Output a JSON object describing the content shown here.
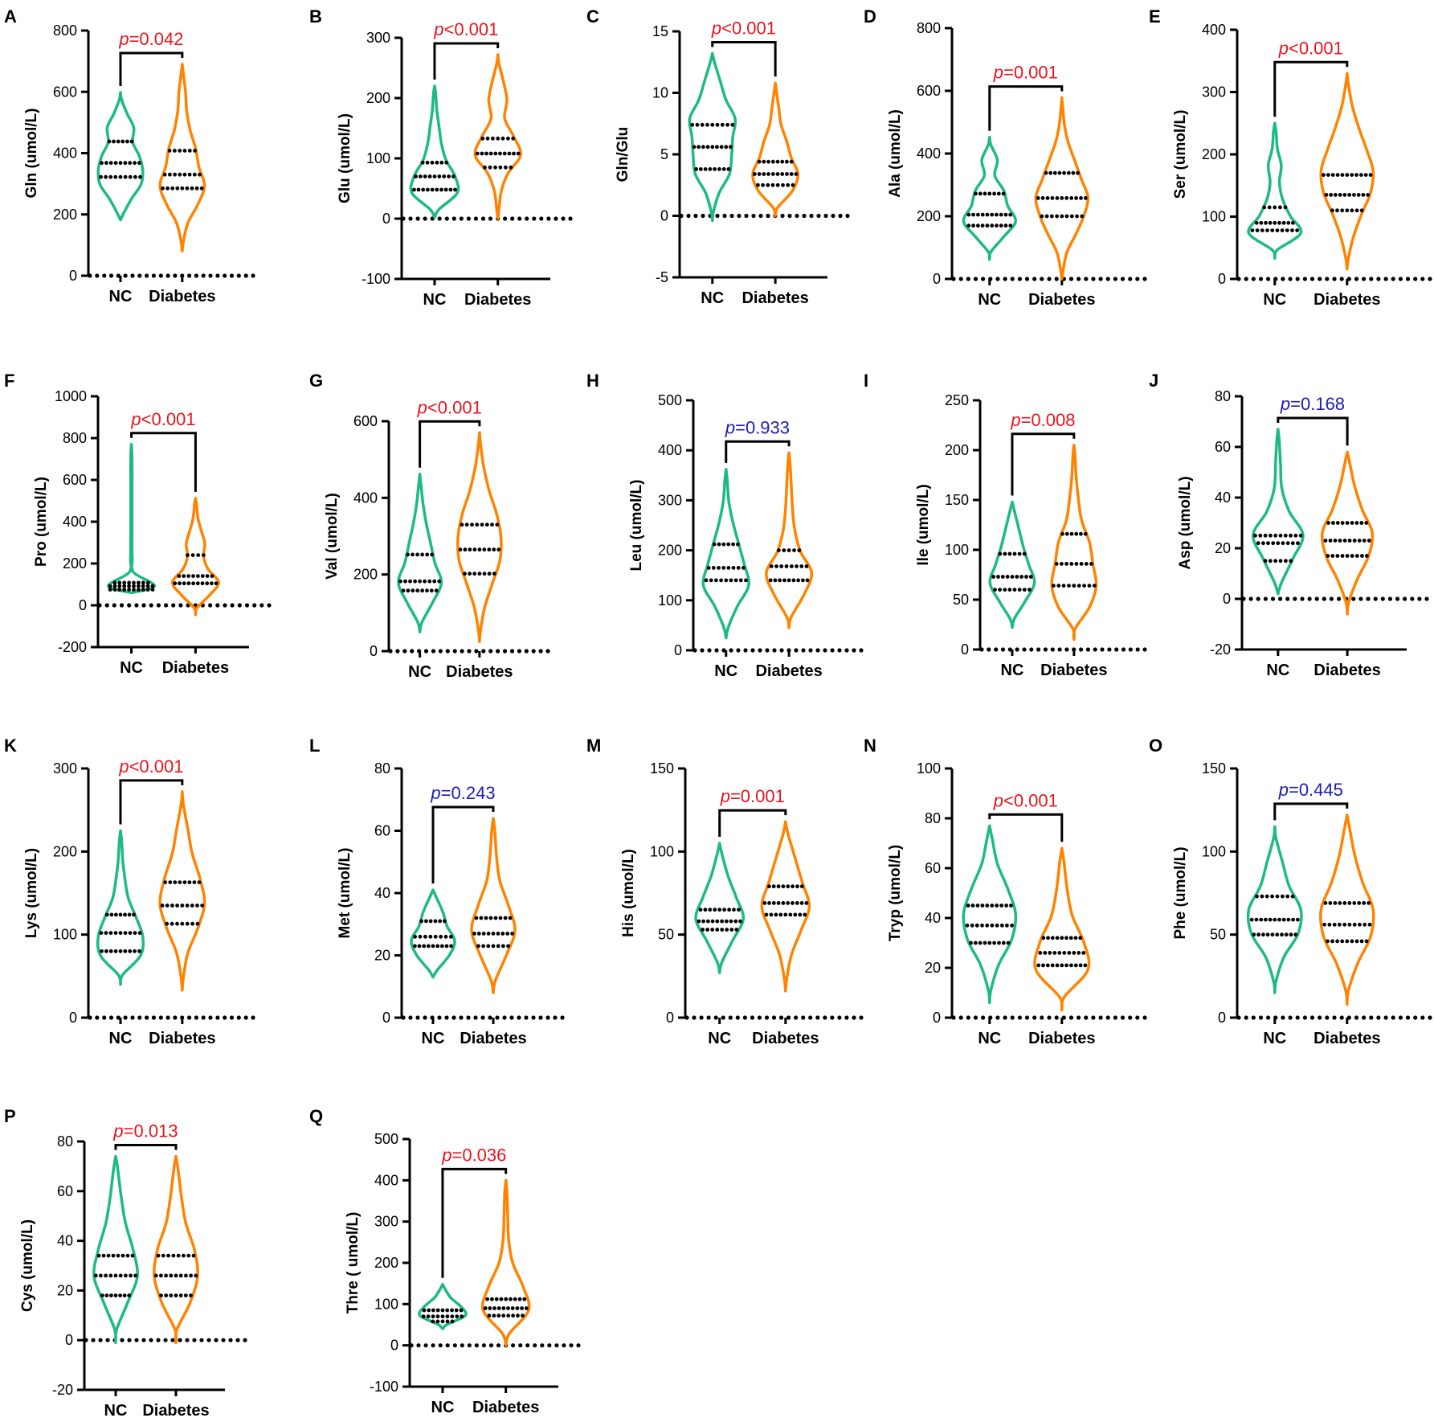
{
  "colors": {
    "nc": "#1dbb80",
    "diabetes": "#ff8300",
    "sig": "#e8141e",
    "nonsig": "#1c1cb4",
    "ink": "#000000"
  },
  "groups": [
    "NC",
    "Diabetes"
  ],
  "p_prefix": "p",
  "chart_data": [
    {
      "panel": "A",
      "type": "violin",
      "ylabel": "Gln (umol/L)",
      "ylim": [
        0,
        800
      ],
      "yticks": [
        0,
        200,
        400,
        600,
        800
      ],
      "ytick_labels": [
        "0",
        "200",
        "400",
        "600",
        "800"
      ],
      "p_text": "=0.042",
      "significant": true,
      "series": [
        {
          "name": "NC",
          "min": 182,
          "max": 598,
          "q1": 322,
          "median": 368,
          "q3": 438,
          "shape": [
            0.15,
            0.5,
            0.92,
            1.0,
            0.85,
            0.55,
            0.6,
            0.3,
            0.05
          ]
        },
        {
          "name": "Diabetes",
          "min": 80,
          "max": 690,
          "q1": 285,
          "median": 330,
          "q3": 408,
          "shape": [
            0.05,
            0.25,
            0.7,
            1.0,
            0.75,
            0.6,
            0.35,
            0.2,
            0.15,
            0.05
          ]
        }
      ]
    },
    {
      "panel": "B",
      "type": "violin",
      "ylabel": "Glu (umol/L)",
      "ylim": [
        -100,
        300
      ],
      "yticks": [
        -100,
        0,
        100,
        200,
        300
      ],
      "ytick_labels": [
        "-100",
        "0",
        "100",
        "200",
        "300"
      ],
      "p_text": "<0.001",
      "significant": true,
      "series": [
        {
          "name": "NC",
          "min": 2,
          "max": 220,
          "q1": 48,
          "median": 70,
          "q3": 93,
          "shape": [
            0.2,
            1.0,
            0.9,
            0.5,
            0.3,
            0.2,
            0.1,
            0.05
          ]
        },
        {
          "name": "Diabetes",
          "min": 0,
          "max": 272,
          "q1": 85,
          "median": 108,
          "q3": 133,
          "shape": [
            0.05,
            0.15,
            0.45,
            1.0,
            0.7,
            0.3,
            0.4,
            0.25,
            0.05
          ]
        }
      ]
    },
    {
      "panel": "C",
      "type": "violin",
      "ylabel": "Gln/Glu",
      "ylim": [
        -5,
        15
      ],
      "yticks": [
        -5,
        0,
        5,
        10,
        15
      ],
      "ytick_labels": [
        "-5",
        "0",
        "5",
        "10",
        "15"
      ],
      "p_text": "<0.001",
      "significant": true,
      "series": [
        {
          "name": "NC",
          "min": -0.4,
          "max": 13.2,
          "q1": 3.8,
          "median": 5.6,
          "q3": 7.4,
          "shape": [
            0.05,
            0.3,
            0.75,
            0.85,
            0.9,
            1.0,
            0.6,
            0.35,
            0.1
          ]
        },
        {
          "name": "Diabetes",
          "min": 0,
          "max": 10.8,
          "q1": 2.5,
          "median": 3.4,
          "q3": 4.4,
          "shape": [
            0.1,
            0.75,
            1.0,
            0.7,
            0.5,
            0.25,
            0.15,
            0.05
          ]
        }
      ]
    },
    {
      "panel": "D",
      "type": "violin",
      "ylabel": "Ala (umol/L)",
      "ylim": [
        0,
        800
      ],
      "yticks": [
        0,
        200,
        400,
        600,
        800
      ],
      "ytick_labels": [
        "0",
        "200",
        "400",
        "600",
        "800"
      ],
      "p_text": "=0.001",
      "significant": true,
      "series": [
        {
          "name": "NC",
          "min": 62,
          "max": 452,
          "q1": 170,
          "median": 205,
          "q3": 272,
          "shape": [
            0.05,
            0.55,
            1.0,
            0.7,
            0.55,
            0.2,
            0.3,
            0.05
          ]
        },
        {
          "name": "Diabetes",
          "min": 0,
          "max": 578,
          "q1": 200,
          "median": 258,
          "q3": 338,
          "shape": [
            0.05,
            0.2,
            0.55,
            0.85,
            1.0,
            0.75,
            0.5,
            0.25,
            0.1,
            0.03
          ]
        }
      ]
    },
    {
      "panel": "E",
      "type": "violin",
      "ylabel": "Ser (umol/L)",
      "ylim": [
        0,
        400
      ],
      "yticks": [
        0,
        100,
        200,
        300,
        400
      ],
      "ytick_labels": [
        "0",
        "100",
        "200",
        "300",
        "400"
      ],
      "p_text": "<0.001",
      "significant": true,
      "series": [
        {
          "name": "NC",
          "min": 33,
          "max": 250,
          "q1": 78,
          "median": 90,
          "q3": 115,
          "shape": [
            0.1,
            1.0,
            0.6,
            0.3,
            0.18,
            0.25,
            0.1,
            0.05
          ]
        },
        {
          "name": "Diabetes",
          "min": 16,
          "max": 330,
          "q1": 110,
          "median": 135,
          "q3": 167,
          "shape": [
            0.05,
            0.25,
            0.55,
            0.9,
            1.0,
            0.75,
            0.45,
            0.2,
            0.05
          ]
        }
      ]
    },
    {
      "panel": "F",
      "type": "violin",
      "ylabel": "Pro (umol/L)",
      "ylim": [
        -200,
        1000
      ],
      "yticks": [
        -200,
        0,
        200,
        400,
        600,
        800,
        1000
      ],
      "ytick_labels": [
        "-200",
        "0",
        "200",
        "400",
        "600",
        "800",
        "1000"
      ],
      "p_text": "<0.001",
      "significant": true,
      "series": [
        {
          "name": "NC",
          "min": 60,
          "max": 770,
          "q1": 75,
          "median": 92,
          "q3": 108,
          "shape": [
            1.0,
            0.1,
            0.04,
            0.03,
            0.03,
            0.03,
            0.03,
            0.03,
            0.03,
            0.03,
            0.02
          ]
        },
        {
          "name": "Diabetes",
          "min": -45,
          "max": 512,
          "q1": 105,
          "median": 140,
          "q3": 240,
          "shape": [
            0.05,
            0.6,
            1.0,
            0.55,
            0.35,
            0.4,
            0.25,
            0.1,
            0.05
          ]
        }
      ]
    },
    {
      "panel": "G",
      "type": "violin",
      "ylabel": "Val (umol/L)",
      "ylim": [
        0,
        600
      ],
      "yticks": [
        0,
        200,
        400,
        600
      ],
      "ytick_labels": [
        "0",
        "200",
        "400",
        "600"
      ],
      "p_text": "<0.001",
      "significant": true,
      "series": [
        {
          "name": "NC",
          "min": 50,
          "max": 462,
          "q1": 158,
          "median": 182,
          "q3": 252,
          "shape": [
            0.1,
            0.6,
            1.0,
            0.7,
            0.5,
            0.3,
            0.15,
            0.05
          ]
        },
        {
          "name": "Diabetes",
          "min": 25,
          "max": 570,
          "q1": 202,
          "median": 265,
          "q3": 330,
          "shape": [
            0.05,
            0.25,
            0.6,
            0.95,
            1.0,
            0.8,
            0.45,
            0.2,
            0.05
          ]
        }
      ]
    },
    {
      "panel": "H",
      "type": "violin",
      "ylabel": "Leu (umol/L)",
      "ylim": [
        0,
        500
      ],
      "yticks": [
        0,
        100,
        200,
        300,
        400,
        500
      ],
      "ytick_labels": [
        "0",
        "100",
        "200",
        "300",
        "400",
        "500"
      ],
      "p_text": "=0.933",
      "significant": false,
      "series": [
        {
          "name": "NC",
          "min": 25,
          "max": 362,
          "q1": 140,
          "median": 165,
          "q3": 212,
          "shape": [
            0.1,
            0.5,
            1.0,
            0.8,
            0.55,
            0.3,
            0.12,
            0.05
          ]
        },
        {
          "name": "Diabetes",
          "min": 45,
          "max": 395,
          "q1": 140,
          "median": 168,
          "q3": 200,
          "shape": [
            0.1,
            0.65,
            1.0,
            0.5,
            0.25,
            0.15,
            0.1,
            0.05
          ]
        }
      ]
    },
    {
      "panel": "I",
      "type": "violin",
      "ylabel": "Ile (umol/L)",
      "ylim": [
        0,
        250
      ],
      "yticks": [
        0,
        50,
        100,
        150,
        200,
        250
      ],
      "ytick_labels": [
        "0",
        "50",
        "100",
        "150",
        "200",
        "250"
      ],
      "p_text": "=0.008",
      "significant": true,
      "series": [
        {
          "name": "NC",
          "min": 22,
          "max": 148,
          "q1": 60,
          "median": 73,
          "q3": 96,
          "shape": [
            0.1,
            0.6,
            1.0,
            0.75,
            0.5,
            0.3,
            0.1
          ]
        },
        {
          "name": "Diabetes",
          "min": 10,
          "max": 205,
          "q1": 64,
          "median": 86,
          "q3": 116,
          "shape": [
            0.05,
            0.7,
            1.0,
            0.85,
            0.7,
            0.35,
            0.2,
            0.1,
            0.05
          ]
        }
      ]
    },
    {
      "panel": "J",
      "type": "violin",
      "ylabel": "Asp (umol/L)",
      "ylim": [
        -20,
        80
      ],
      "yticks": [
        -20,
        0,
        20,
        40,
        60,
        80
      ],
      "ytick_labels": [
        "-20",
        "0",
        "20",
        "40",
        "60",
        "80"
      ],
      "p_text": "=0.168",
      "significant": false,
      "series": [
        {
          "name": "NC",
          "min": 2,
          "max": 67,
          "q1": 15,
          "median": 22,
          "q3": 25,
          "shape": [
            0.15,
            0.6,
            1.0,
            0.45,
            0.15,
            0.1,
            0.05
          ]
        },
        {
          "name": "Diabetes",
          "min": -6,
          "max": 58,
          "q1": 17,
          "median": 23,
          "q3": 30,
          "shape": [
            0.05,
            0.4,
            0.85,
            1.0,
            0.6,
            0.3,
            0.1
          ]
        }
      ]
    },
    {
      "panel": "K",
      "type": "violin",
      "ylabel": "Lys (umol/L)",
      "ylim": [
        0,
        300
      ],
      "yticks": [
        0,
        100,
        200,
        300
      ],
      "ytick_labels": [
        "0",
        "100",
        "200",
        "300"
      ],
      "p_text": "<0.001",
      "significant": true,
      "series": [
        {
          "name": "NC",
          "min": 40,
          "max": 225,
          "q1": 80,
          "median": 102,
          "q3": 124,
          "shape": [
            0.1,
            0.9,
            1.0,
            0.7,
            0.35,
            0.2,
            0.1,
            0.05
          ]
        },
        {
          "name": "Diabetes",
          "min": 33,
          "max": 272,
          "q1": 113,
          "median": 135,
          "q3": 163,
          "shape": [
            0.05,
            0.25,
            0.7,
            1.0,
            0.8,
            0.45,
            0.25,
            0.05
          ]
        }
      ]
    },
    {
      "panel": "L",
      "type": "violin",
      "ylabel": "Met (umol/L)",
      "ylim": [
        0,
        80
      ],
      "yticks": [
        0,
        20,
        40,
        60,
        80
      ],
      "ytick_labels": [
        "0",
        "20",
        "40",
        "60",
        "80"
      ],
      "p_text": "=0.243",
      "significant": false,
      "series": [
        {
          "name": "NC",
          "min": 13,
          "max": 41,
          "q1": 23,
          "median": 26,
          "q3": 31,
          "shape": [
            0.2,
            0.75,
            1.0,
            0.65,
            0.45,
            0.15
          ]
        },
        {
          "name": "Diabetes",
          "min": 8,
          "max": 64,
          "q1": 23,
          "median": 27,
          "q3": 32,
          "shape": [
            0.1,
            0.6,
            1.0,
            0.7,
            0.3,
            0.15,
            0.07
          ]
        }
      ]
    },
    {
      "panel": "M",
      "type": "violin",
      "ylabel": "His (umol/L)",
      "ylim": [
        0,
        150
      ],
      "yticks": [
        0,
        50,
        100,
        150
      ],
      "ytick_labels": [
        "0",
        "50",
        "100",
        "150"
      ],
      "p_text": "=0.001",
      "significant": true,
      "series": [
        {
          "name": "NC",
          "min": 27,
          "max": 105,
          "q1": 53,
          "median": 58,
          "q3": 65,
          "shape": [
            0.1,
            0.55,
            1.0,
            0.7,
            0.35,
            0.1
          ]
        },
        {
          "name": "Diabetes",
          "min": 16,
          "max": 118,
          "q1": 62,
          "median": 69,
          "q3": 79,
          "shape": [
            0.05,
            0.25,
            0.65,
            1.0,
            0.7,
            0.4,
            0.1
          ]
        }
      ]
    },
    {
      "panel": "N",
      "type": "violin",
      "ylabel": "Tryp (umol/L)",
      "ylim": [
        0,
        100
      ],
      "yticks": [
        0,
        20,
        40,
        60,
        80,
        100
      ],
      "ytick_labels": [
        "0",
        "20",
        "40",
        "60",
        "80",
        "100"
      ],
      "p_text": "<0.001",
      "significant": true,
      "series": [
        {
          "name": "NC",
          "min": 6,
          "max": 77,
          "q1": 30,
          "median": 37,
          "q3": 45,
          "shape": [
            0.05,
            0.35,
            0.85,
            1.0,
            0.7,
            0.3,
            0.1
          ]
        },
        {
          "name": "Diabetes",
          "min": 3,
          "max": 68,
          "q1": 21,
          "median": 26,
          "q3": 32,
          "shape": [
            0.1,
            1.0,
            0.85,
            0.4,
            0.2,
            0.08
          ]
        }
      ]
    },
    {
      "panel": "O",
      "type": "violin",
      "ylabel": "Phe (umol/L)",
      "ylim": [
        0,
        150
      ],
      "yticks": [
        0,
        50,
        100,
        150
      ],
      "ytick_labels": [
        "0",
        "50",
        "100",
        "150"
      ],
      "p_text": "=0.445",
      "significant": false,
      "series": [
        {
          "name": "NC",
          "min": 15,
          "max": 115,
          "q1": 50,
          "median": 59,
          "q3": 73,
          "shape": [
            0.05,
            0.35,
            0.9,
            1.0,
            0.55,
            0.3,
            0.05
          ]
        },
        {
          "name": "Diabetes",
          "min": 8,
          "max": 122,
          "q1": 46,
          "median": 56,
          "q3": 69,
          "shape": [
            0.05,
            0.4,
            0.9,
            1.0,
            0.6,
            0.3,
            0.1
          ]
        }
      ]
    },
    {
      "panel": "P",
      "type": "violin",
      "ylabel": "Cys (umol/L)",
      "ylim": [
        -20,
        80
      ],
      "yticks": [
        -20,
        0,
        20,
        40,
        60,
        80
      ],
      "ytick_labels": [
        "-20",
        "0",
        "20",
        "40",
        "60",
        "80"
      ],
      "p_text": "=0.013",
      "significant": true,
      "series": [
        {
          "name": "NC",
          "min": -1,
          "max": 74,
          "q1": 18,
          "median": 26,
          "q3": 34,
          "shape": [
            0.05,
            0.55,
            1.0,
            0.8,
            0.45,
            0.25,
            0.1
          ]
        },
        {
          "name": "Diabetes",
          "min": -1,
          "max": 74,
          "q1": 18,
          "median": 26,
          "q3": 34,
          "shape": [
            0.05,
            0.65,
            1.0,
            0.85,
            0.45,
            0.25,
            0.1
          ]
        }
      ]
    },
    {
      "panel": "Q",
      "type": "violin",
      "ylabel": "Thre ( umol/L)",
      "ylim": [
        -100,
        500
      ],
      "yticks": [
        -100,
        0,
        100,
        200,
        300,
        400,
        500
      ],
      "ytick_labels": [
        "-100",
        "0",
        "100",
        "200",
        "300",
        "400",
        "500"
      ],
      "p_text": "=0.036",
      "significant": true,
      "series": [
        {
          "name": "NC",
          "min": 40,
          "max": 148,
          "q1": 58,
          "median": 70,
          "q3": 85,
          "shape": [
            0.2,
            1.0,
            0.8,
            0.35,
            0.1
          ]
        },
        {
          "name": "Diabetes",
          "min": 0,
          "max": 400,
          "q1": 72,
          "median": 90,
          "q3": 112,
          "shape": [
            0.15,
            1.0,
            0.75,
            0.3,
            0.12,
            0.08,
            0.05
          ]
        }
      ]
    }
  ]
}
